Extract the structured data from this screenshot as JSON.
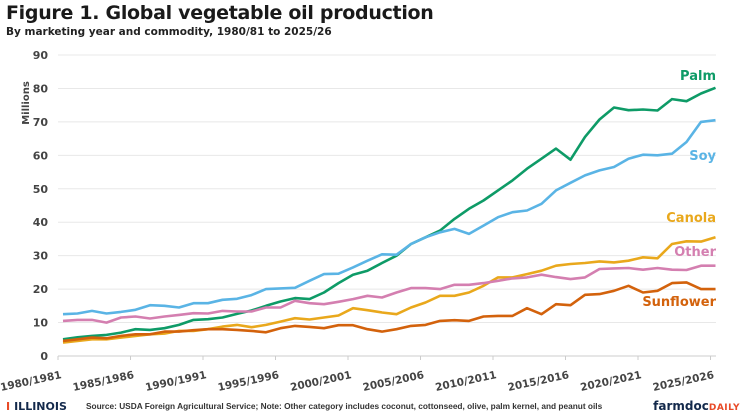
{
  "header": {
    "title": "Figure 1. Global vegetable oil production",
    "subtitle": "By marketing year and commodity, 1980/81 to 2025/26"
  },
  "footer": {
    "illinois_logo": "ILLINOIS",
    "source": "Source: USDA Foreign Agricultural Service; Note: Other category includes coconut, cottonseed, olive, palm kernel, and peanut oils",
    "farmdoc_logo_main": "farmdoc",
    "farmdoc_logo_sub": "DAILY"
  },
  "chart_data": {
    "type": "line",
    "title": "Figure 1. Global vegetable oil production",
    "ylabel": "Millions",
    "ylim": [
      0,
      90
    ],
    "yticks": [
      0,
      10,
      20,
      30,
      40,
      50,
      60,
      70,
      80,
      90
    ],
    "xtick_labels": [
      "1980/1981",
      "1985/1986",
      "1990/1991",
      "1995/1996",
      "2000/2001",
      "2005/2006",
      "2010/2011",
      "2015/2016",
      "2020/2021",
      "2025/2026"
    ],
    "x_start": 1980,
    "x_end": 2025,
    "grid": true,
    "legend": "inline-right",
    "series": [
      {
        "name": "Palm",
        "color": "#0e9b67",
        "values": [
          5,
          5.6,
          6,
          6.3,
          7,
          8,
          7.8,
          8.3,
          9.3,
          10.8,
          11,
          11.5,
          12.6,
          13.6,
          15,
          16.3,
          17.3,
          17,
          19,
          21.8,
          24.3,
          25.5,
          27.8,
          30,
          33.5,
          35.5,
          37.5,
          41,
          44,
          46.5,
          49.5,
          52.5,
          56,
          59,
          62,
          58.7,
          65.5,
          70.7,
          74.3,
          73.5,
          73.7,
          73.4,
          76.8,
          76.2,
          78.5,
          80.2
        ]
      },
      {
        "name": "Soy",
        "color": "#5ab4e5",
        "values": [
          12.5,
          12.7,
          13.5,
          12.7,
          13.2,
          13.8,
          15.2,
          15,
          14.5,
          15.8,
          15.8,
          16.8,
          17.1,
          18.2,
          20,
          20.2,
          20.4,
          22.5,
          24.5,
          24.6,
          26.5,
          28.5,
          30.4,
          30.3,
          33.5,
          35.5,
          37,
          38,
          36.5,
          39,
          41.5,
          43,
          43.5,
          45.5,
          49.5,
          51.8,
          54,
          55.5,
          56.5,
          59,
          60.2,
          60,
          60.5,
          64,
          70,
          70.5
        ]
      },
      {
        "name": "Canola",
        "color": "#e9a81c",
        "values": [
          4,
          4.5,
          5,
          5,
          5.5,
          6,
          6.5,
          6.7,
          7.5,
          7.5,
          8,
          8.8,
          9.3,
          8.6,
          9.3,
          10.3,
          11.3,
          10.9,
          11.5,
          12.1,
          14.3,
          13.7,
          13,
          12.5,
          14.5,
          16,
          18,
          18,
          19,
          21,
          23.5,
          23.5,
          24.5,
          25.5,
          27,
          27.5,
          27.8,
          28.3,
          28,
          28.5,
          29.5,
          29.2,
          33.5,
          34.3,
          34.2,
          35.5
        ]
      },
      {
        "name": "Other",
        "color": "#d47fb0",
        "values": [
          10.5,
          10.8,
          10.8,
          10,
          11.5,
          11.8,
          11.2,
          11.8,
          12.3,
          12.8,
          12.7,
          13.5,
          13.3,
          13.3,
          14.5,
          14.5,
          16.5,
          15.8,
          15.5,
          16.2,
          17,
          18,
          17.5,
          19,
          20.3,
          20.3,
          20,
          21.3,
          21.3,
          21.8,
          22.5,
          23.2,
          23.5,
          24.3,
          23.6,
          23,
          23.5,
          26,
          26.2,
          26.3,
          25.8,
          26.3,
          25.8,
          25.7,
          27,
          27
        ]
      },
      {
        "name": "Sunflower",
        "color": "#d3620c",
        "values": [
          4.5,
          5,
          5.5,
          5.3,
          6,
          6.5,
          6.5,
          7.3,
          7.3,
          7.7,
          8,
          8,
          7.8,
          7.5,
          7.1,
          8.3,
          9,
          8.7,
          8.3,
          9.2,
          9.2,
          8,
          7.3,
          8,
          9,
          9.3,
          10.5,
          10.7,
          10.5,
          11.8,
          12,
          12,
          14.3,
          12.5,
          15.5,
          15.2,
          18.3,
          18.5,
          19.5,
          21,
          19,
          19.5,
          21.8,
          22,
          20,
          20
        ]
      }
    ]
  }
}
